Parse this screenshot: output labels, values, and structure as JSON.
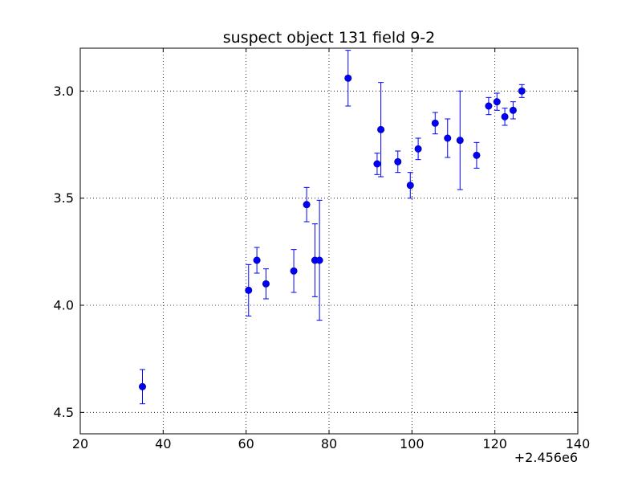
{
  "chart_data": {
    "type": "scatter",
    "title": "suspect object 131 field 9-2",
    "xlabel": "",
    "ylabel": "",
    "x_offset_label": "+2.456e6",
    "xlim": [
      20,
      140
    ],
    "ylim": [
      4.6,
      2.8
    ],
    "y_inverted": true,
    "grid": true,
    "x_ticks": [
      20,
      40,
      60,
      80,
      100,
      120,
      140
    ],
    "x_tick_labels": [
      "20",
      "40",
      "60",
      "80",
      "100",
      "120",
      "140"
    ],
    "y_ticks": [
      3.0,
      3.5,
      4.0,
      4.5
    ],
    "y_tick_labels": [
      "3.0",
      "3.5",
      "4.0",
      "4.5"
    ],
    "series": [
      {
        "color": "#0000ff",
        "marker": "circle",
        "points": [
          {
            "x": 35.0,
            "y": 4.38,
            "err": 0.08
          },
          {
            "x": 60.6,
            "y": 3.93,
            "err": 0.12
          },
          {
            "x": 62.6,
            "y": 3.79,
            "err": 0.06
          },
          {
            "x": 64.8,
            "y": 3.9,
            "err": 0.07
          },
          {
            "x": 71.5,
            "y": 3.84,
            "err": 0.1
          },
          {
            "x": 74.6,
            "y": 3.53,
            "err": 0.08
          },
          {
            "x": 76.6,
            "y": 3.79,
            "err": 0.17
          },
          {
            "x": 77.7,
            "y": 3.79,
            "err": 0.28
          },
          {
            "x": 84.6,
            "y": 2.94,
            "err": 0.13
          },
          {
            "x": 91.6,
            "y": 3.34,
            "err": 0.05
          },
          {
            "x": 92.5,
            "y": 3.18,
            "err": 0.22
          },
          {
            "x": 96.6,
            "y": 3.33,
            "err": 0.05
          },
          {
            "x": 99.6,
            "y": 3.44,
            "err": 0.06
          },
          {
            "x": 101.5,
            "y": 3.27,
            "err": 0.05
          },
          {
            "x": 105.6,
            "y": 3.15,
            "err": 0.05
          },
          {
            "x": 108.6,
            "y": 3.22,
            "err": 0.09
          },
          {
            "x": 111.6,
            "y": 3.23,
            "err": 0.23
          },
          {
            "x": 115.6,
            "y": 3.3,
            "err": 0.06
          },
          {
            "x": 118.5,
            "y": 3.07,
            "err": 0.04
          },
          {
            "x": 120.5,
            "y": 3.05,
            "err": 0.04
          },
          {
            "x": 122.4,
            "y": 3.12,
            "err": 0.04
          },
          {
            "x": 124.4,
            "y": 3.09,
            "err": 0.04
          },
          {
            "x": 126.5,
            "y": 3.0,
            "err": 0.03
          }
        ]
      }
    ]
  }
}
